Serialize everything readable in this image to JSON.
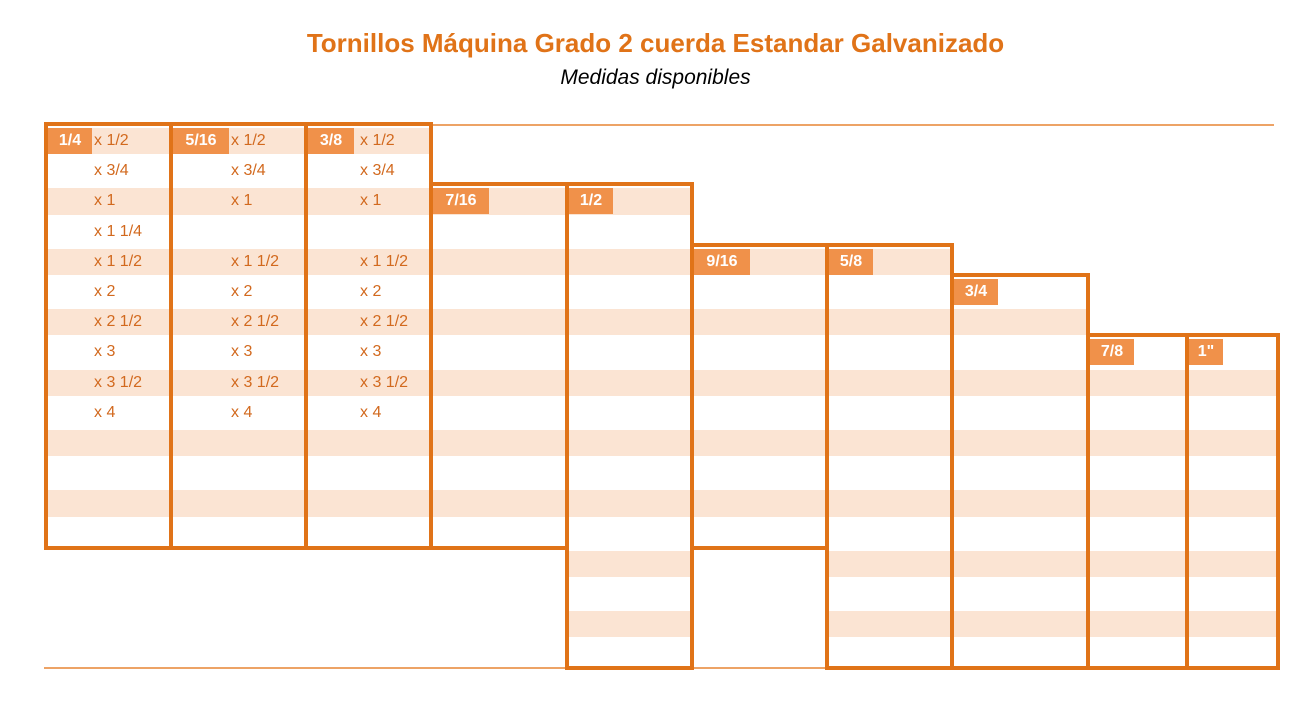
{
  "title": "Tornillos Máquina Grado 2 cuerda Estandar Galvanizado",
  "subtitle": "Medidas disponibles",
  "colors": {
    "accent": "#e07318",
    "tag": "#f0914a",
    "stripe": "#fbe4d3",
    "rule": "#eda366"
  },
  "columns": [
    {
      "diameter": "1/4",
      "lengths": [
        "x 1/2",
        "x 3/4",
        "x 1",
        "x 1 1/4",
        "x 1 1/2",
        "x 2",
        "x 2 1/2",
        "x 3",
        "x 3 1/2",
        "x 4"
      ]
    },
    {
      "diameter": "5/16",
      "lengths": [
        "x 1/2",
        "x 3/4",
        "x 1",
        "",
        "x 1 1/2",
        "x 2",
        "x 2 1/2",
        "x 3",
        "x 3 1/2",
        "x 4"
      ]
    },
    {
      "diameter": "3/8",
      "lengths": [
        "x 1/2",
        "x 3/4",
        "x 1",
        "",
        "x 1 1/2",
        "x 2",
        "x 2 1/2",
        "x 3",
        "x 3 1/2",
        "x 4"
      ]
    },
    {
      "diameter": "7/16",
      "lengths": []
    },
    {
      "diameter": "1/2",
      "lengths": []
    },
    {
      "diameter": "9/16",
      "lengths": []
    },
    {
      "diameter": "5/8",
      "lengths": []
    },
    {
      "diameter": "3/4",
      "lengths": []
    },
    {
      "diameter": "7/8",
      "lengths": []
    },
    {
      "diameter": "1\"",
      "lengths": []
    }
  ]
}
